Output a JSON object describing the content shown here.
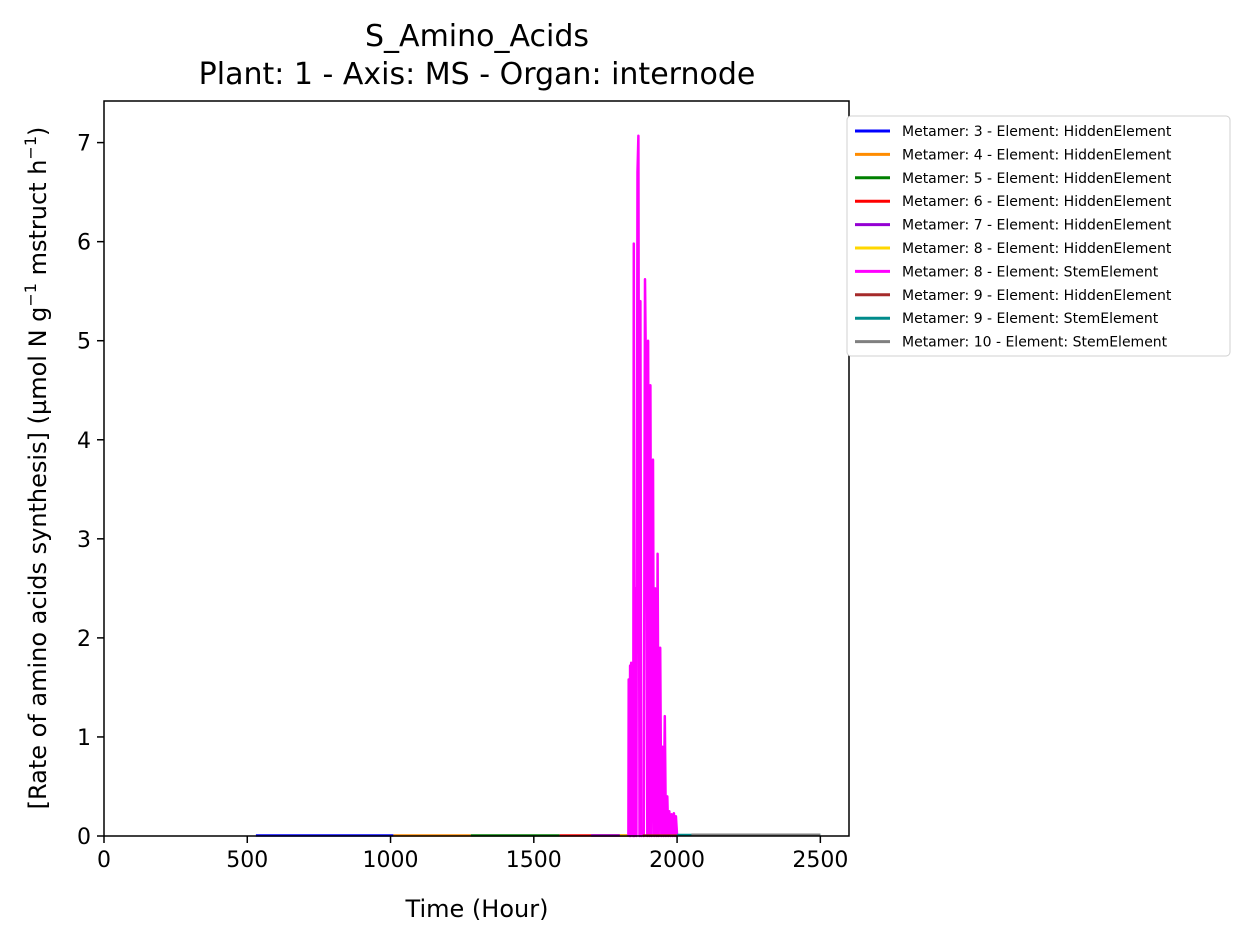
{
  "chart_data": {
    "type": "line",
    "title": "S_Amino_Acids",
    "subtitle": "Plant: 1 - Axis: MS - Organ: internode",
    "xlabel": "Time (Hour)",
    "ylabel_parts": {
      "prefix": "[Rate of amino acids synthesis] (µmol N g",
      "sup1": "−1",
      "middle": " mstruct h",
      "sup2": "−1",
      "suffix": ")"
    },
    "xlim": [
      0,
      2600
    ],
    "ylim": [
      0,
      7.42
    ],
    "x_ticks": [
      0,
      500,
      1000,
      1500,
      2000,
      2500
    ],
    "y_ticks": [
      0,
      1,
      2,
      3,
      4,
      5,
      6,
      7
    ],
    "grid": false,
    "legend_position": "outside-top-right",
    "series": [
      {
        "name": "Metamer: 3 - Element: HiddenElement",
        "color": "#0000ff",
        "x": [
          530,
          1010
        ],
        "y": [
          0.005,
          0.005
        ]
      },
      {
        "name": "Metamer: 4 - Element: HiddenElement",
        "color": "#ff8c00",
        "x": [
          1010,
          1280
        ],
        "y": [
          0.005,
          0.005
        ]
      },
      {
        "name": "Metamer: 5 - Element: HiddenElement",
        "color": "#008000",
        "x": [
          1280,
          1590
        ],
        "y": [
          0.005,
          0.005
        ]
      },
      {
        "name": "Metamer: 6 - Element: HiddenElement",
        "color": "#ff0000",
        "x": [
          1590,
          1830
        ],
        "y": [
          0.005,
          0.005
        ]
      },
      {
        "name": "Metamer: 7 - Element: HiddenElement",
        "color": "#9400d3",
        "x": [
          1700,
          1830
        ],
        "y": [
          0.005,
          0.005
        ]
      },
      {
        "name": "Metamer: 8 - Element: HiddenElement",
        "color": "#ffd700",
        "x": [
          1800,
          1830
        ],
        "y": [
          0.005,
          0.005
        ]
      },
      {
        "name": "Metamer: 8 - Element: StemElement",
        "color": "#ff00ff",
        "x": [
          1830,
          1831,
          1834,
          1836,
          1838,
          1840,
          1843,
          1847,
          1849,
          1851,
          1855,
          1858,
          1862,
          1865,
          1869,
          1872,
          1875,
          1880,
          1884,
          1888,
          1893,
          1896,
          1899,
          1904,
          1907,
          1911,
          1916,
          1920,
          1924,
          1929,
          1932,
          1936,
          1941,
          1945,
          1949,
          1953,
          1957,
          1961,
          1966,
          1969,
          1973,
          1977,
          1981,
          1985,
          1989,
          1993,
          1996,
          2000
        ],
        "y": [
          0,
          1.58,
          0,
          1.72,
          0,
          1.75,
          0.05,
          0,
          5.98,
          0,
          2.5,
          0,
          6.7,
          7.07,
          0,
          5.4,
          0,
          0.05,
          0,
          5.62,
          4.2,
          0,
          5.0,
          0,
          4.55,
          0,
          3.8,
          0,
          2.5,
          0,
          2.85,
          0,
          1.9,
          0,
          0.9,
          0,
          1.21,
          0,
          0.4,
          0,
          0.25,
          0,
          0.22,
          0,
          0.23,
          0,
          0.2,
          0
        ]
      },
      {
        "name": "Metamer: 9 - Element: HiddenElement",
        "color": "#a52a2a",
        "x": [
          1880,
          2000
        ],
        "y": [
          0.005,
          0.005
        ]
      },
      {
        "name": "Metamer: 9 - Element: StemElement",
        "color": "#008b8b",
        "x": [
          2000,
          2500
        ],
        "y": [
          0.01,
          0.01
        ]
      },
      {
        "name": "Metamer: 10 - Element: StemElement",
        "color": "#808080",
        "x": [
          2050,
          2500
        ],
        "y": [
          0.012,
          0.012
        ]
      }
    ]
  }
}
